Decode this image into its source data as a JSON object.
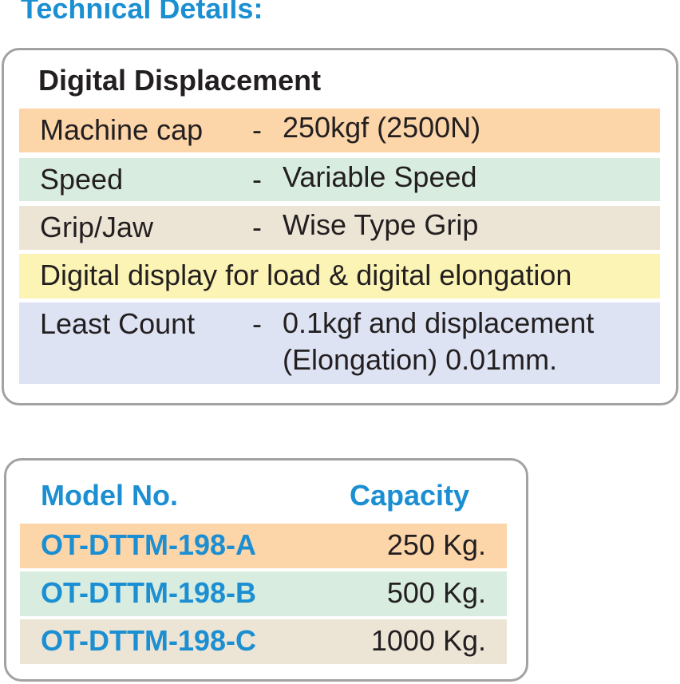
{
  "heading": "Technical Details:",
  "spec": {
    "title": "Digital Displacement",
    "rows": [
      {
        "label": "Machine cap",
        "dash": "-",
        "value": "250kgf (2500N)",
        "color": "#fcd5a9"
      },
      {
        "label": "Speed",
        "dash": "-",
        "value": "Variable Speed",
        "color": "#d8ecdf"
      },
      {
        "label": "Grip/Jaw",
        "dash": "-",
        "value": "Wise Type Grip",
        "color": "#ece5d6"
      },
      {
        "full": "Digital display for load & digital elongation",
        "color": "#fcf4b4"
      },
      {
        "label": "Least Count",
        "dash": "-",
        "value_line1": "0.1kgf and displacement",
        "value_line2": "(Elongation) 0.01mm.",
        "color": "#dde3f3"
      }
    ]
  },
  "models": {
    "header_model": "Model No.",
    "header_capacity": "Capacity",
    "rows": [
      {
        "model": "OT-DTTM-198-A",
        "capacity": "250 Kg.",
        "color": "#fcd5a9"
      },
      {
        "model": "OT-DTTM-198-B",
        "capacity": "500 Kg.",
        "color": "#d8ecdf"
      },
      {
        "model": "OT-DTTM-198-C",
        "capacity": "1000 Kg.",
        "color": "#ece5d6"
      }
    ]
  },
  "colors": {
    "accent": "#1b8fd2",
    "text": "#231f20",
    "border": "#a2a2a2"
  }
}
